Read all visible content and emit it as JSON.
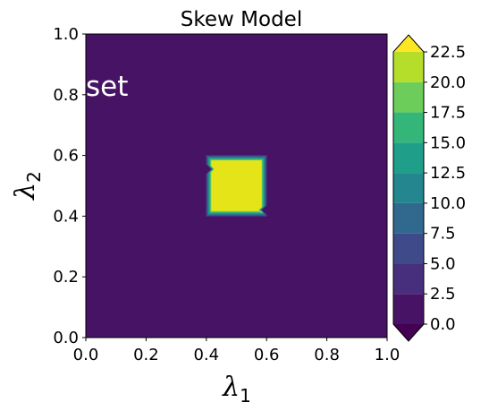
{
  "chart_data": {
    "type": "heatmap",
    "subtype": "filled-contour",
    "title": "Skew Model",
    "xlabel": {
      "symbol": "λ",
      "subscript": "1"
    },
    "ylabel": {
      "symbol": "λ",
      "subscript": "2"
    },
    "xlim": [
      0.0,
      1.0
    ],
    "ylim": [
      0.0,
      1.0
    ],
    "xticks": [
      "0.0",
      "0.2",
      "0.4",
      "0.6",
      "0.8",
      "1.0"
    ],
    "yticks": [
      "0.0",
      "0.2",
      "0.4",
      "0.6",
      "0.8",
      "1.0"
    ],
    "annotation": {
      "text": "set",
      "x": 0.0,
      "y": 0.83
    },
    "grid": false,
    "background_value": 1.0,
    "region": {
      "value": 22.0,
      "x_range": [
        0.4,
        0.6
      ],
      "y_range": [
        0.4,
        0.6
      ],
      "notches": [
        {
          "side": "left",
          "y": 0.555
        },
        {
          "side": "right",
          "y": 0.42
        }
      ]
    },
    "colorbar": {
      "levels": [
        0,
        2.5,
        5,
        7.5,
        10,
        12.5,
        15,
        17.5,
        20,
        22.5
      ],
      "tick_labels": [
        "0.0",
        "2.5",
        "5.0",
        "7.5",
        "10.0",
        "12.5",
        "15.0",
        "17.5",
        "20.0",
        "22.5"
      ],
      "colors": [
        "#471365",
        "#472f7d",
        "#3e4a89",
        "#30688e",
        "#24868e",
        "#1f9e89",
        "#34b679",
        "#6ccd5a",
        "#b5de2b"
      ],
      "under_color": "#440154",
      "over_color": "#fde725",
      "extend": "both"
    },
    "region_color": "#e5e419"
  }
}
